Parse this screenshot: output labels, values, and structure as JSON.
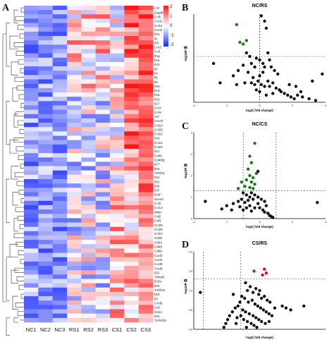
{
  "panels": {
    "A": "A",
    "B": "B",
    "C": "C",
    "D": "D"
  },
  "heatmap": {
    "samples": [
      "NC1",
      "NC2",
      "NC3",
      "RS1",
      "RS2",
      "RS3",
      "CS1",
      "CS2",
      "CS3"
    ],
    "genes_visible": [
      "Csf",
      "Gapdh",
      "Ccl5",
      "Cxcl1",
      "Ccl11",
      "Cxcl1",
      "Il7a",
      "Il1",
      "Il3r",
      "Lcn2",
      "Cx3",
      "Ifng",
      "Il1a",
      "Il1b",
      "Il2",
      "Il4",
      "Il5",
      "Il6",
      "Il10",
      "Il13",
      "Il15",
      "Il16",
      "Il17",
      "Ccr4",
      "Ccr5",
      "Tnf",
      "Cxcr3",
      "Ccl19",
      "Ccl20",
      "Ccl22",
      "Il18",
      "Ccl21",
      "Ccl24",
      "Il21",
      "Cd40",
      "Cd40lg",
      "Il27",
      "Il33",
      "Tnfsf11",
      "Il12",
      "Il31",
      "Il36",
      "Il37",
      "Il18r",
      "Socs3",
      "Ccl2",
      "Ccl14",
      "Mstn",
      "Csf2",
      "Csf3",
      "Ccl25",
      "Ccl26",
      "Ccl27",
      "Cd38",
      "Cd44",
      "Cd48",
      "Cd69",
      "Cxcl2",
      "Cxcl3",
      "Cxcl5",
      "Cxcl9",
      "Il22",
      "Tnfrsf4",
      "Il23a",
      "Il25",
      "Tnfsf10",
      "Il19",
      "Il3",
      "Cxcl9",
      "Cd1",
      "Cd14",
      "Il24",
      "Tnfrsf1b"
    ],
    "legend_ticks": [
      "2",
      "1",
      "0",
      "-1",
      "-2"
    ]
  },
  "chart_data": [
    {
      "panel": "B",
      "type": "scatter",
      "title": "NC/RS",
      "xlabel": "log2( fold change)",
      "ylabel": "-log10P 值",
      "xlim": [
        -4,
        4
      ],
      "ylim": [
        0,
        2.5
      ],
      "x_ticks": [
        "-4",
        "-2",
        "0",
        "2",
        "4"
      ],
      "vlines": [
        0,
        0
      ],
      "hline": 1.3,
      "series": [
        {
          "color": "#1a7a1a",
          "points": [
            [
              -1.4,
              2.2
            ],
            [
              -1.2,
              1.7
            ],
            [
              -0.8,
              1.75
            ],
            [
              -1.0,
              1.65
            ]
          ]
        },
        {
          "color": "#111111",
          "points": [
            [
              0.1,
              2.45
            ],
            [
              0.3,
              2.3
            ],
            [
              0.4,
              2.1
            ],
            [
              -2.8,
              1.1
            ],
            [
              -1.0,
              1.05
            ],
            [
              -1.3,
              0.9
            ],
            [
              -0.8,
              1.4
            ],
            [
              -0.6,
              1.3
            ],
            [
              -0.5,
              1.1
            ],
            [
              -0.3,
              1.0
            ],
            [
              -0.2,
              1.25
            ],
            [
              0,
              1.2
            ],
            [
              0.2,
              1.1
            ],
            [
              0.3,
              1.0
            ],
            [
              0.5,
              1.4
            ],
            [
              0.6,
              1.2
            ],
            [
              0.7,
              1.0
            ],
            [
              0.9,
              0.9
            ],
            [
              1.1,
              0.8
            ],
            [
              0.2,
              0.85
            ],
            [
              0.0,
              0.75
            ],
            [
              -0.4,
              0.7
            ],
            [
              -0.7,
              0.85
            ],
            [
              -1.6,
              0.75
            ],
            [
              -2.4,
              0.55
            ],
            [
              -1.4,
              0.5
            ],
            [
              -0.9,
              0.55
            ],
            [
              -0.5,
              0.55
            ],
            [
              -0.3,
              0.5
            ],
            [
              -0.1,
              0.6
            ],
            [
              0.1,
              0.5
            ],
            [
              0.3,
              0.45
            ],
            [
              0.5,
              0.6
            ],
            [
              0.6,
              0.45
            ],
            [
              0.8,
              0.55
            ],
            [
              1.0,
              0.4
            ],
            [
              1.2,
              0.35
            ],
            [
              1.3,
              0.3
            ],
            [
              1.5,
              0.25
            ],
            [
              1.7,
              0.2
            ],
            [
              1.9,
              0.15
            ],
            [
              2.1,
              0.1
            ],
            [
              2.3,
              0.2
            ],
            [
              2.5,
              0.3
            ],
            [
              2.6,
              0.15
            ],
            [
              3.0,
              0.1
            ],
            [
              3.4,
              0.05
            ],
            [
              3.8,
              0.8
            ],
            [
              3.2,
              0.6
            ],
            [
              0.8,
              0.25
            ],
            [
              0.4,
              0.2
            ],
            [
              0.0,
              0.3
            ],
            [
              -0.2,
              0.35
            ],
            [
              1.8,
              0.5
            ],
            [
              2.2,
              0.45
            ]
          ]
        }
      ]
    },
    {
      "panel": "C",
      "type": "scatter",
      "title": "NC/CS",
      "xlabel": "log2( fold change)",
      "ylabel": "-log10P 值",
      "xlim": [
        -4,
        4
      ],
      "ylim": [
        0,
        4
      ],
      "x_ticks": [
        "-4",
        "-2",
        "0",
        "2",
        "4"
      ],
      "y_ticks": [
        "0",
        "1",
        "2",
        "3",
        "4"
      ],
      "vlines": [
        -1,
        1
      ],
      "hline": 1.3,
      "series": [
        {
          "color": "#1a7a1a",
          "points": [
            [
              -0.3,
              3.5
            ],
            [
              -0.6,
              2.9
            ],
            [
              -0.5,
              2.6
            ],
            [
              -0.7,
              2.3
            ],
            [
              -0.6,
              2.0
            ],
            [
              -0.4,
              1.9
            ],
            [
              -0.8,
              1.8
            ],
            [
              -0.5,
              1.7
            ],
            [
              -0.3,
              1.6
            ],
            [
              -0.9,
              1.5
            ],
            [
              -0.6,
              1.45
            ],
            [
              -0.4,
              1.4
            ],
            [
              -0.2,
              2.1
            ],
            [
              -1.3,
              1.4
            ],
            [
              -1.1,
              1.7
            ]
          ]
        },
        {
          "color": "#111111",
          "points": [
            [
              -0.1,
              2.2
            ],
            [
              -3.3,
              0.8
            ],
            [
              -2.0,
              0.6
            ],
            [
              -1.6,
              0.7
            ],
            [
              -1.3,
              0.8
            ],
            [
              -1.0,
              1.2
            ],
            [
              -0.8,
              1.1
            ],
            [
              -0.6,
              1.0
            ],
            [
              -0.5,
              1.2
            ],
            [
              -0.3,
              1.1
            ],
            [
              -0.1,
              1.0
            ],
            [
              0.1,
              0.9
            ],
            [
              0.3,
              0.8
            ],
            [
              0.4,
              0.6
            ],
            [
              -0.4,
              0.9
            ],
            [
              -0.7,
              0.85
            ],
            [
              -0.9,
              0.75
            ],
            [
              -1.1,
              0.9
            ],
            [
              -0.6,
              0.6
            ],
            [
              -0.3,
              0.5
            ],
            [
              -0.1,
              0.7
            ],
            [
              0.0,
              0.5
            ],
            [
              0.2,
              0.4
            ],
            [
              0.3,
              0.3
            ],
            [
              0.5,
              0.25
            ],
            [
              0.6,
              0.15
            ],
            [
              0.7,
              0.1
            ],
            [
              -0.8,
              0.5
            ],
            [
              -1.2,
              0.55
            ],
            [
              -2.3,
              0.45
            ],
            [
              -1.7,
              0.4
            ],
            [
              -1.0,
              0.4
            ],
            [
              -0.5,
              0.35
            ],
            [
              3.5,
              0.75
            ],
            [
              0.8,
              0.05
            ]
          ]
        }
      ]
    },
    {
      "panel": "D",
      "type": "scatter",
      "title": "CS/RS",
      "xlabel": "log2( fold change)",
      "ylabel": "-log10P 值",
      "xlim": [
        -6,
        8
      ],
      "ylim": [
        0,
        2.0
      ],
      "y_ticks": [
        "0.0",
        "0.5",
        "1.0",
        "1.5",
        "2.0"
      ],
      "vlines": [
        -5,
        -1
      ],
      "hline": 1.3,
      "series": [
        {
          "color": "#dd1111",
          "points": [
            [
              0.4,
              1.5
            ],
            [
              1.5,
              1.55
            ],
            [
              1.7,
              1.45
            ],
            [
              1.3,
              1.4
            ]
          ]
        },
        {
          "color": "#111111",
          "points": [
            [
              -0.5,
              1.2
            ],
            [
              -0.3,
              1.0
            ],
            [
              0.0,
              1.1
            ],
            [
              0.3,
              0.95
            ],
            [
              0.6,
              1.05
            ],
            [
              0.9,
              0.9
            ],
            [
              1.2,
              0.8
            ],
            [
              1.5,
              0.85
            ],
            [
              1.8,
              0.75
            ],
            [
              2.1,
              0.7
            ],
            [
              -0.9,
              0.85
            ],
            [
              -1.1,
              0.7
            ],
            [
              -1.3,
              0.6
            ],
            [
              -1.6,
              0.55
            ],
            [
              -1.9,
              0.45
            ],
            [
              -2.2,
              0.35
            ],
            [
              -2.4,
              0.25
            ],
            [
              -2.6,
              0.15
            ],
            [
              -2.8,
              0.05
            ],
            [
              -0.6,
              0.8
            ],
            [
              -0.2,
              0.7
            ],
            [
              0.2,
              0.75
            ],
            [
              0.5,
              0.65
            ],
            [
              0.8,
              0.6
            ],
            [
              1.1,
              0.55
            ],
            [
              1.4,
              0.5
            ],
            [
              1.7,
              0.45
            ],
            [
              2.0,
              0.4
            ],
            [
              2.3,
              0.35
            ],
            [
              -0.8,
              0.5
            ],
            [
              -0.5,
              0.45
            ],
            [
              -0.1,
              0.4
            ],
            [
              0.3,
              0.35
            ],
            [
              0.6,
              0.3
            ],
            [
              0.9,
              0.25
            ],
            [
              1.2,
              0.2
            ],
            [
              -1.0,
              0.35
            ],
            [
              -0.7,
              0.25
            ],
            [
              -0.3,
              0.2
            ],
            [
              0.1,
              0.15
            ],
            [
              0.4,
              0.1
            ],
            [
              -0.4,
              0.05
            ],
            [
              0.7,
              0.05
            ],
            [
              -1.4,
              0.3
            ],
            [
              1.6,
              0.15
            ],
            [
              2.6,
              0.55
            ],
            [
              3.4,
              0.6
            ],
            [
              3.8,
              0.55
            ],
            [
              4.3,
              0.5
            ],
            [
              5.7,
              0.6
            ],
            [
              -5.3,
              0.95
            ],
            [
              -1.8,
              0.9
            ],
            [
              1.0,
              1.0
            ],
            [
              -1.5,
              0.15
            ],
            [
              2.0,
              0.2
            ]
          ]
        }
      ]
    }
  ]
}
